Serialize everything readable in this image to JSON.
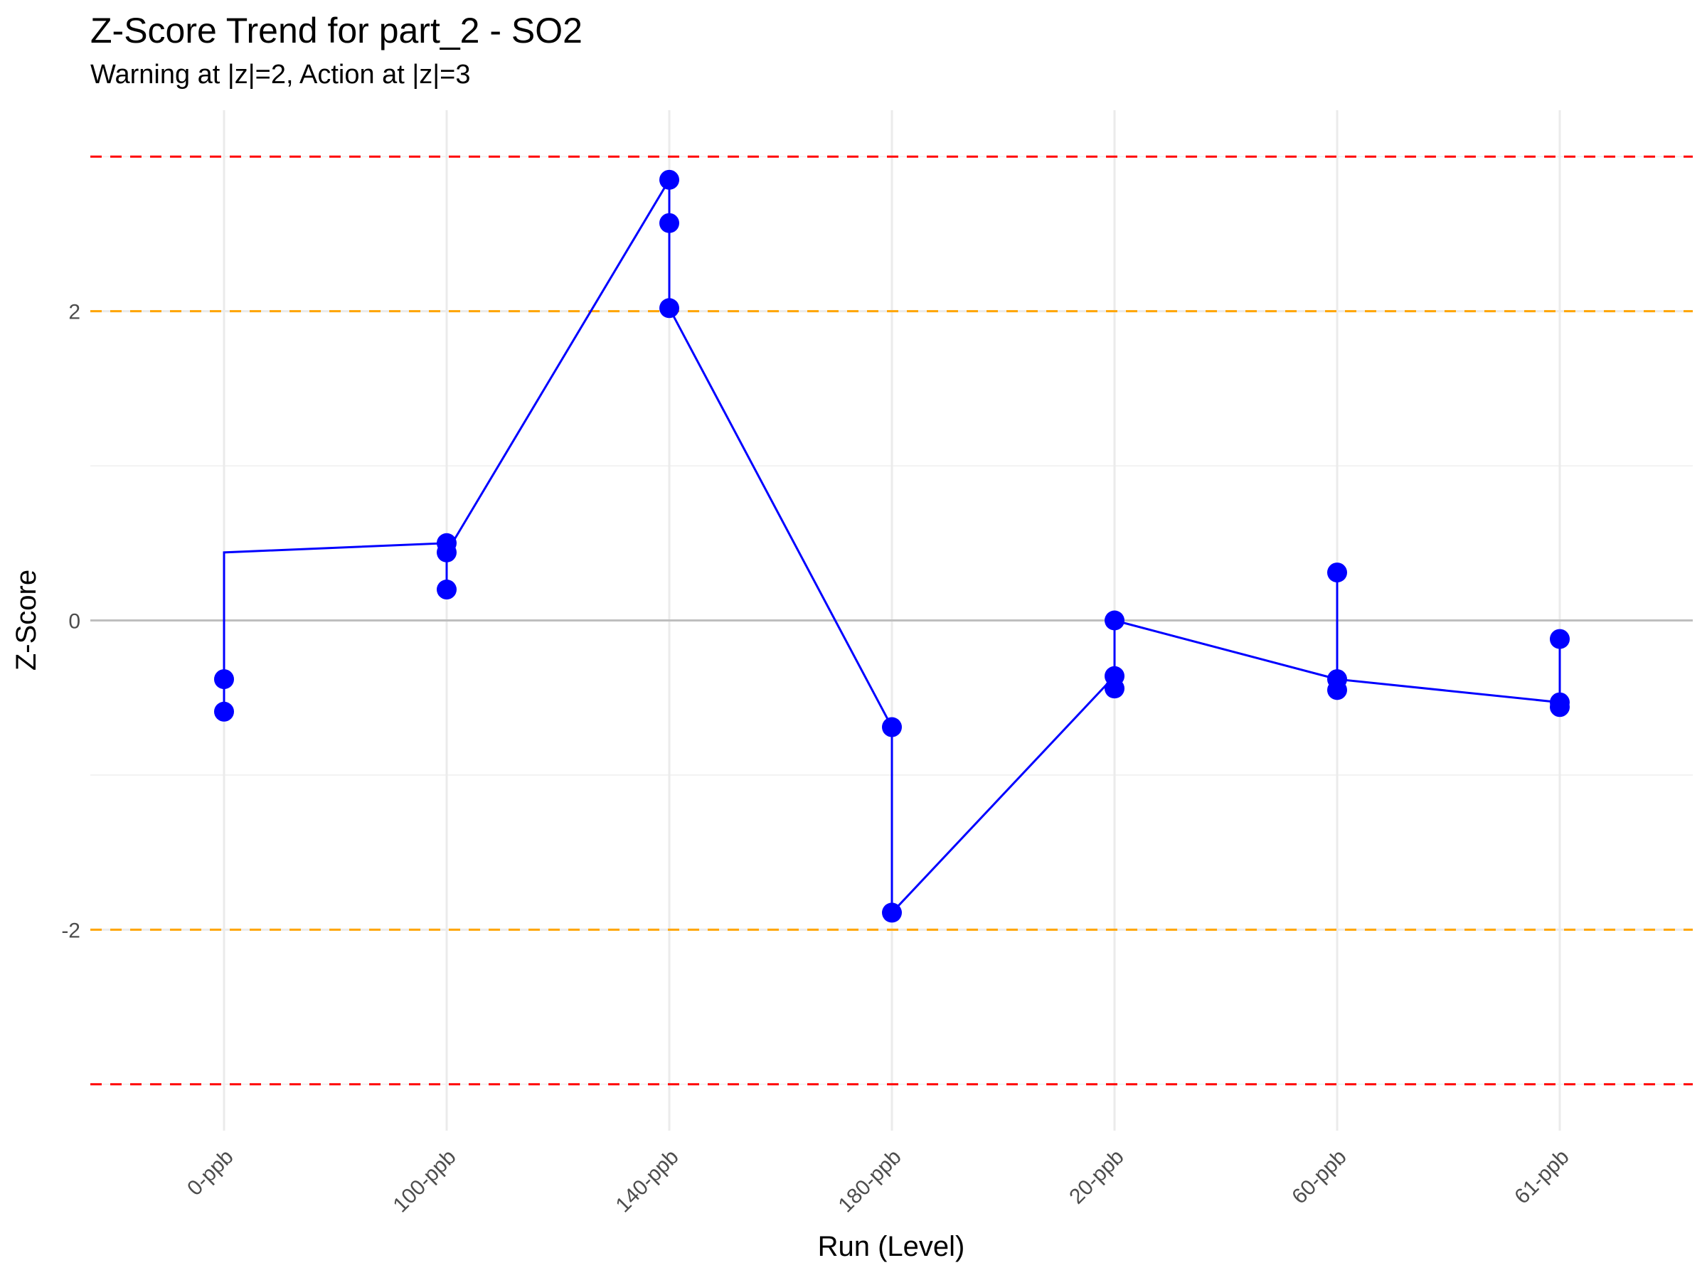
{
  "chart_data": {
    "type": "line",
    "title": "Z-Score Trend for part_2 - SO2",
    "subtitle": "Warning at |z|=2, Action at |z|=3",
    "xlabel": "Run (Level)",
    "ylabel": "Z-Score",
    "categories": [
      "0-ppb",
      "100-ppb",
      "140-ppb",
      "180-ppb",
      "20-ppb",
      "60-ppb",
      "61-ppb"
    ],
    "points": [
      {
        "x": "0-ppb",
        "y": -0.38
      },
      {
        "x": "0-ppb",
        "y": -0.59
      },
      {
        "x": "100-ppb",
        "y": 0.5
      },
      {
        "x": "100-ppb",
        "y": 0.44
      },
      {
        "x": "100-ppb",
        "y": 0.2
      },
      {
        "x": "140-ppb",
        "y": 2.85
      },
      {
        "x": "140-ppb",
        "y": 2.57
      },
      {
        "x": "140-ppb",
        "y": 2.02
      },
      {
        "x": "180-ppb",
        "y": -0.69
      },
      {
        "x": "180-ppb",
        "y": -1.89
      },
      {
        "x": "20-ppb",
        "y": 0.0
      },
      {
        "x": "20-ppb",
        "y": -0.36
      },
      {
        "x": "20-ppb",
        "y": -0.44
      },
      {
        "x": "60-ppb",
        "y": 0.31
      },
      {
        "x": "60-ppb",
        "y": -0.38
      },
      {
        "x": "60-ppb",
        "y": -0.45
      },
      {
        "x": "61-ppb",
        "y": -0.12
      },
      {
        "x": "61-ppb",
        "y": -0.53
      },
      {
        "x": "61-ppb",
        "y": -0.56
      }
    ],
    "path_order_y": [
      -0.38,
      -0.59,
      0.44,
      0.5,
      0.2,
      0.44,
      2.85,
      2.57,
      2.02,
      -0.69,
      -1.89,
      -0.36,
      -0.44,
      0.0,
      -0.38,
      0.31,
      -0.45,
      -0.38,
      -0.53,
      -0.12,
      -0.56,
      -0.53
    ],
    "path_order_x": [
      "0-ppb",
      "0-ppb",
      "0-ppb",
      "100-ppb",
      "100-ppb",
      "100-ppb",
      "140-ppb",
      "140-ppb",
      "140-ppb",
      "180-ppb",
      "180-ppb",
      "20-ppb",
      "20-ppb",
      "20-ppb",
      "60-ppb",
      "60-ppb",
      "60-ppb",
      "60-ppb",
      "61-ppb",
      "61-ppb",
      "61-ppb",
      "61-ppb"
    ],
    "reference_lines": [
      {
        "y": 3,
        "color": "#ff0000",
        "style": "dashed"
      },
      {
        "y": 2,
        "color": "#ffa500",
        "style": "dashed"
      },
      {
        "y": 0,
        "color": "#bebebe",
        "style": "solid"
      },
      {
        "y": -2,
        "color": "#ffa500",
        "style": "dashed"
      },
      {
        "y": -3,
        "color": "#ff0000",
        "style": "dashed"
      }
    ],
    "y_ticks": [
      -2,
      0,
      2
    ],
    "ylim": [
      -3.3,
      3.3
    ],
    "grid": true,
    "series_color": "#0000ff"
  }
}
